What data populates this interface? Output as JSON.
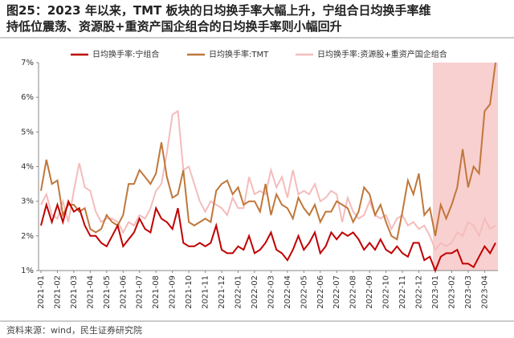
{
  "chart_data": {
    "type": "line",
    "title": "图25：2023 年以来，TMT 板块的日均换手率大幅上升，宁组合日均换手率维持低位震荡、资源股+重资产国企组合的日均换手率则小幅回升",
    "title_lines": [
      "图25：2023 年以来，TMT 板块的日均换手率大幅上升，宁组合日均换手率维",
      "持低位震荡、资源股+重资产国企组合的日均换手率则小幅回升"
    ],
    "source": "资料来源：wind，民生证券研究院",
    "categories": [
      "2021-01",
      null,
      null,
      "2021-02",
      null,
      null,
      "2021-03",
      null,
      null,
      "2021-04",
      null,
      null,
      "2021-05",
      null,
      null,
      "2021-06",
      null,
      null,
      "2021-07",
      null,
      null,
      "2021-08",
      null,
      null,
      "2021-09",
      null,
      null,
      "2021-10",
      null,
      null,
      "2021-11",
      null,
      null,
      "2021-12",
      null,
      null,
      "2022-01",
      null,
      null,
      "2022-02",
      null,
      null,
      "2022-03",
      null,
      null,
      "2022-04",
      null,
      null,
      "2022-05",
      null,
      null,
      "2022-06",
      null,
      null,
      "2022-07",
      null,
      null,
      "2022-08",
      null,
      null,
      "2022-09",
      null,
      null,
      "2022-10",
      null,
      null,
      "2022-11",
      null,
      null,
      "2022-12",
      null,
      null,
      "2023-01",
      null,
      null,
      "2023-02",
      null,
      null,
      "2023-03",
      null,
      null,
      "2023-04",
      null,
      null
    ],
    "series": [
      {
        "name": "日均换手率:宁组合",
        "color": "#c00000",
        "values": [
          2.3,
          2.9,
          2.4,
          2.9,
          2.4,
          3.0,
          2.7,
          2.8,
          2.3,
          2.0,
          2.0,
          1.8,
          1.7,
          2.0,
          2.3,
          1.7,
          1.9,
          2.1,
          2.5,
          2.2,
          2.1,
          2.8,
          2.5,
          2.4,
          2.2,
          2.8,
          1.8,
          1.7,
          1.7,
          1.8,
          1.7,
          1.8,
          2.3,
          1.6,
          1.5,
          1.5,
          1.7,
          1.6,
          2.0,
          1.5,
          1.6,
          1.8,
          2.1,
          1.6,
          1.5,
          1.3,
          1.6,
          2.0,
          1.6,
          1.8,
          2.1,
          1.5,
          1.7,
          2.1,
          1.9,
          2.1,
          2.0,
          2.1,
          1.9,
          1.6,
          1.8,
          1.6,
          1.9,
          1.6,
          1.5,
          1.7,
          1.5,
          1.4,
          1.8,
          1.8,
          1.3,
          1.4,
          1.0,
          1.4,
          1.5,
          1.5,
          1.6,
          1.2,
          1.2,
          1.1,
          1.4,
          1.7,
          1.5,
          1.8
        ]
      },
      {
        "name": "日均换手率:TMT",
        "color": "#c0773a",
        "values": [
          3.3,
          4.2,
          3.5,
          3.6,
          2.6,
          2.9,
          2.9,
          2.7,
          2.8,
          2.2,
          2.1,
          2.2,
          2.6,
          2.4,
          2.3,
          2.6,
          3.5,
          3.5,
          3.9,
          3.7,
          3.5,
          3.8,
          4.7,
          3.7,
          3.1,
          3.2,
          3.9,
          2.4,
          2.3,
          2.4,
          2.5,
          2.4,
          3.3,
          3.5,
          3.6,
          3.2,
          3.4,
          2.9,
          3.0,
          3.0,
          2.7,
          3.5,
          2.6,
          3.2,
          2.9,
          2.8,
          2.5,
          3.1,
          2.8,
          2.6,
          2.9,
          2.4,
          2.7,
          2.7,
          3.0,
          2.9,
          2.8,
          2.4,
          2.7,
          3.4,
          3.2,
          2.6,
          2.9,
          2.4,
          2.0,
          1.9,
          2.7,
          3.6,
          3.2,
          3.8,
          2.6,
          2.8,
          2.0,
          2.9,
          2.5,
          2.9,
          3.4,
          4.5,
          3.4,
          4.0,
          3.8,
          5.6,
          5.8,
          7.0
        ]
      },
      {
        "name": "日均换手率:资源股+重资产国企组合",
        "color": "#f4bcbc",
        "values": [
          2.9,
          3.2,
          2.6,
          2.5,
          3.0,
          2.4,
          3.3,
          4.1,
          3.4,
          3.3,
          2.7,
          2.4,
          2.5,
          2.5,
          2.4,
          2.1,
          2.4,
          2.3,
          2.6,
          2.5,
          2.8,
          3.3,
          3.5,
          4.4,
          5.5,
          5.6,
          3.9,
          4.0,
          3.5,
          3.0,
          2.7,
          3.0,
          2.9,
          2.8,
          2.6,
          3.1,
          2.8,
          2.8,
          3.7,
          3.2,
          3.3,
          3.2,
          3.9,
          3.4,
          3.7,
          3.1,
          3.9,
          3.2,
          3.3,
          3.2,
          3.5,
          3.0,
          3.1,
          3.3,
          3.2,
          2.4,
          3.1,
          2.7,
          2.5,
          2.6,
          3.0,
          2.6,
          2.5,
          2.6,
          2.2,
          2.5,
          2.6,
          2.3,
          2.4,
          2.2,
          2.3,
          2.0,
          1.6,
          1.8,
          1.7,
          1.8,
          2.1,
          2.0,
          2.4,
          2.3,
          2.0,
          2.5,
          2.2,
          2.3
        ]
      }
    ],
    "ylim": [
      1,
      7
    ],
    "yticks": [
      {
        "value": 1,
        "label": "1%"
      },
      {
        "value": 2,
        "label": "2%"
      },
      {
        "value": 3,
        "label": "3%"
      },
      {
        "value": 4,
        "label": "4%"
      },
      {
        "value": 5,
        "label": "5%"
      },
      {
        "value": 6,
        "label": "6%"
      },
      {
        "value": 7,
        "label": "7%"
      }
    ],
    "grid": false,
    "legend": "top"
  }
}
